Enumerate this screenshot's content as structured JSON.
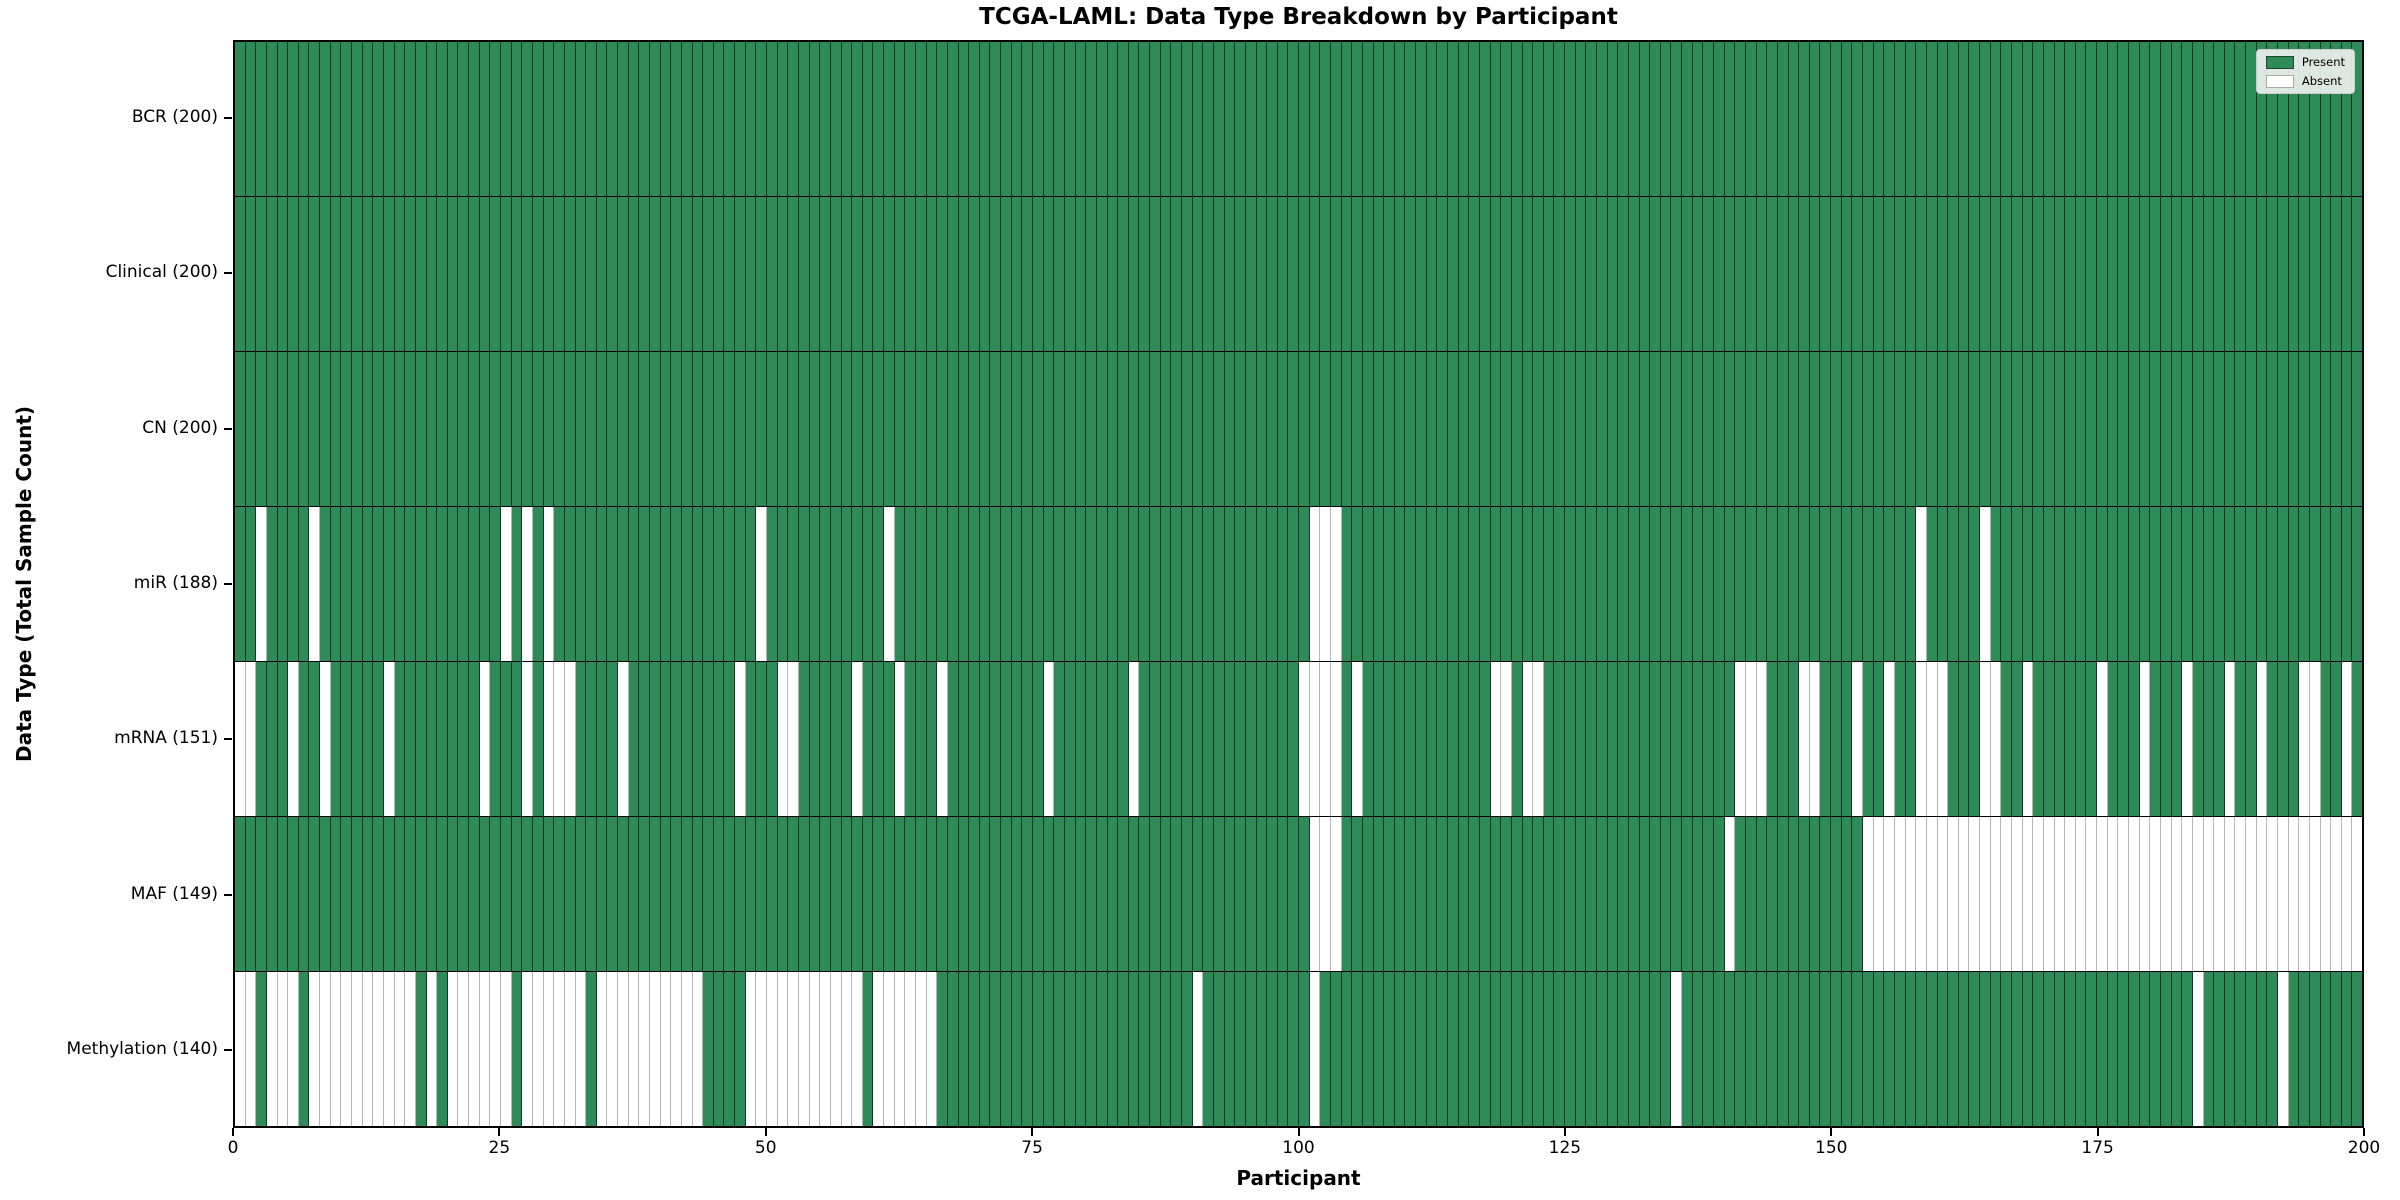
{
  "chart_data": {
    "type": "heatmap",
    "title": "TCGA-LAML: Data Type Breakdown by Participant",
    "xlabel": "Participant",
    "ylabel": "Data Type (Total Sample Count)",
    "participants": 200,
    "x_range": [
      0,
      200
    ],
    "x_ticks": [
      0,
      25,
      50,
      75,
      100,
      125,
      150,
      175,
      200
    ],
    "grid": "off",
    "legend_position": "upper right",
    "colors": {
      "present": "#2e8b57",
      "absent": "#ffffff",
      "row_separator": "#000000",
      "present_gridline": "rgba(0,0,0,0.6)",
      "absent_gridline": "#b5b5b5"
    },
    "legend": [
      {
        "label": "Present",
        "color": "#2e8b57"
      },
      {
        "label": "Absent",
        "color": "#ffffff"
      }
    ],
    "rows": [
      {
        "label": "BCR (200)",
        "name": "BCR",
        "present_count": 200,
        "absent_participants": []
      },
      {
        "label": "Clinical (200)",
        "name": "Clinical",
        "present_count": 200,
        "absent_participants": []
      },
      {
        "label": "CN (200)",
        "name": "CN",
        "present_count": 200,
        "absent_participants": []
      },
      {
        "label": "miR (188)",
        "name": "miR",
        "present_count": 188,
        "absent_participants": [
          2,
          7,
          25,
          27,
          29,
          49,
          61,
          101,
          102,
          103,
          158,
          164
        ]
      },
      {
        "label": "mRNA (151)",
        "name": "mRNA",
        "present_count": 151,
        "absent_participants": [
          0,
          1,
          5,
          8,
          14,
          23,
          27,
          29,
          30,
          31,
          36,
          47,
          51,
          52,
          58,
          62,
          66,
          76,
          84,
          100,
          101,
          102,
          103,
          105,
          118,
          119,
          121,
          122,
          141,
          142,
          143,
          147,
          148,
          152,
          155,
          158,
          159,
          160,
          164,
          165,
          168,
          175,
          179,
          183,
          187,
          190,
          194,
          195,
          198
        ]
      },
      {
        "label": "MAF (149)",
        "name": "MAF",
        "present_count": 149,
        "absent_participants": [
          101,
          102,
          103,
          140,
          153,
          154,
          155,
          156,
          157,
          158,
          159,
          160,
          161,
          162,
          163,
          164,
          165,
          166,
          167,
          168,
          169,
          170,
          171,
          172,
          173,
          174,
          175,
          176,
          177,
          178,
          179,
          180,
          181,
          182,
          183,
          184,
          185,
          186,
          187,
          188,
          189,
          190,
          191,
          192,
          193,
          194,
          195,
          196,
          197,
          198,
          199
        ]
      },
      {
        "label": "Methylation (140)",
        "name": "Methylation",
        "present_count": 140,
        "absent_participants": [
          0,
          1,
          3,
          4,
          5,
          7,
          8,
          9,
          10,
          11,
          12,
          13,
          14,
          15,
          16,
          18,
          20,
          21,
          22,
          23,
          24,
          25,
          27,
          28,
          29,
          30,
          31,
          32,
          34,
          35,
          36,
          37,
          38,
          39,
          40,
          41,
          42,
          43,
          48,
          49,
          50,
          51,
          52,
          53,
          54,
          55,
          56,
          57,
          58,
          60,
          61,
          62,
          63,
          64,
          65,
          90,
          101,
          135,
          184,
          192
        ]
      }
    ]
  }
}
